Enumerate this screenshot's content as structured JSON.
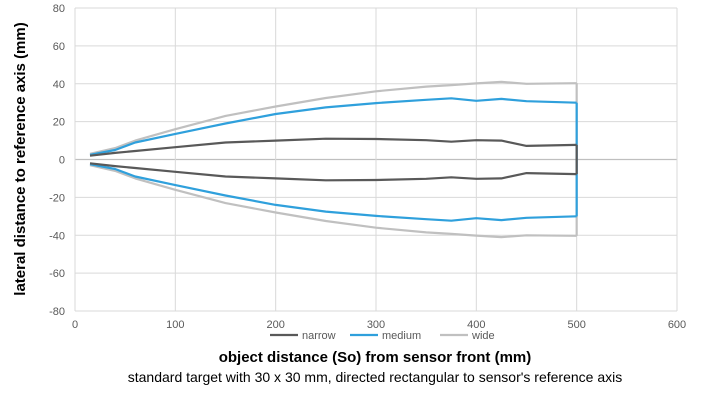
{
  "chart_data": {
    "type": "line",
    "title": "",
    "xlabel": "object distance (So) from sensor front (mm)",
    "ylabel": "lateral distance to reference axis (mm)",
    "caption": "standard target with 30 x 30 mm, directed rectangular to sensor's reference axis",
    "xlim": [
      0,
      600
    ],
    "ylim": [
      -80,
      80
    ],
    "xticks": [
      "0",
      "100",
      "200",
      "300",
      "400",
      "500",
      "600"
    ],
    "yticks": [
      "80",
      "60",
      "40",
      "20",
      "0",
      "-20",
      "-40",
      "-60",
      "-80"
    ],
    "grid": true,
    "legend_position": "bottom",
    "series": [
      {
        "name": "narrow",
        "color": "#595959",
        "upper": {
          "x": [
            15,
            40,
            60,
            100,
            150,
            200,
            250,
            300,
            350,
            375,
            400,
            425,
            450,
            500
          ],
          "y": [
            2,
            3.5,
            4.5,
            6.5,
            9,
            10,
            11,
            10.8,
            10.2,
            9.4,
            10.2,
            10,
            7.2,
            7.7
          ]
        },
        "lower": {
          "x": [
            15,
            40,
            60,
            100,
            150,
            200,
            250,
            300,
            350,
            375,
            400,
            425,
            450,
            500
          ],
          "y": [
            -2,
            -3.5,
            -4.5,
            -6.5,
            -9,
            -10,
            -11,
            -10.8,
            -10.2,
            -9.4,
            -10.2,
            -10,
            -7.2,
            -7.7
          ]
        },
        "closing": {
          "x": 500,
          "y": [
            7.7,
            -7.7
          ]
        }
      },
      {
        "name": "medium",
        "color": "#2fa0dc",
        "upper": {
          "x": [
            15,
            40,
            60,
            100,
            150,
            200,
            250,
            300,
            350,
            375,
            400,
            425,
            450,
            500
          ],
          "y": [
            2.5,
            5,
            9,
            13.5,
            19,
            24,
            27.5,
            29.8,
            31.5,
            32.3,
            31,
            32,
            30.8,
            30
          ]
        },
        "lower": {
          "x": [
            15,
            40,
            60,
            100,
            150,
            200,
            250,
            300,
            350,
            375,
            400,
            425,
            450,
            500
          ],
          "y": [
            -2.5,
            -5,
            -9,
            -13.5,
            -19,
            -24,
            -27.5,
            -29.8,
            -31.5,
            -32.3,
            -31,
            -32,
            -30.8,
            -30
          ]
        },
        "closing": {
          "x": 500,
          "y": [
            30,
            -30
          ]
        }
      },
      {
        "name": "wide",
        "color": "#c0c0c0",
        "upper": {
          "x": [
            15,
            40,
            60,
            100,
            150,
            200,
            250,
            300,
            350,
            375,
            400,
            425,
            450,
            500
          ],
          "y": [
            3,
            6,
            10,
            16,
            23,
            28,
            32.5,
            36,
            38.5,
            39.3,
            40.2,
            41,
            40,
            40.3
          ]
        },
        "lower": {
          "x": [
            15,
            40,
            60,
            100,
            150,
            200,
            250,
            300,
            350,
            375,
            400,
            425,
            450,
            500
          ],
          "y": [
            -3,
            -6,
            -10,
            -16,
            -23,
            -28,
            -32.5,
            -36,
            -38.5,
            -39.3,
            -40.2,
            -41,
            -40,
            -40.3
          ]
        },
        "closing": {
          "x": 500,
          "y": [
            40.3,
            -40.3
          ]
        }
      }
    ]
  }
}
